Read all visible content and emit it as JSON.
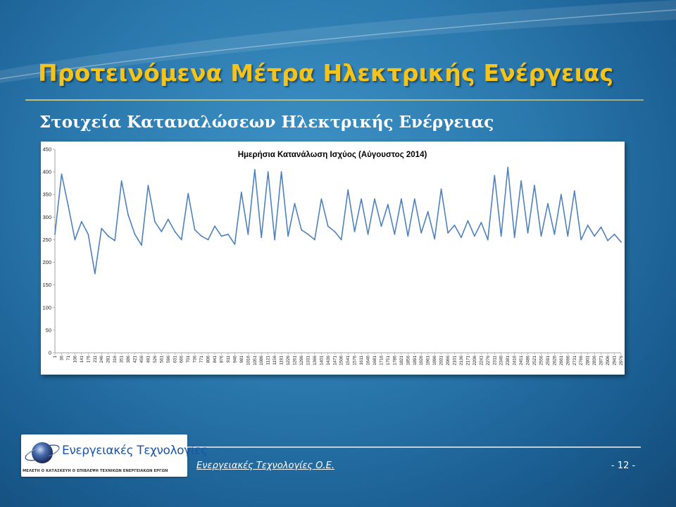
{
  "slide": {
    "title": "Προτεινόμενα Μέτρα Ηλεκτρικής Ενέργειας",
    "subtitle": "Στοιχεία Καταναλώσεων Ηλεκτρικής Ενέργειας",
    "background_color": "#2a78ad",
    "title_color": "#f6c31a"
  },
  "footer": {
    "company": "Ενεργειακές Τεχνολογίες Ο.Ε.",
    "page_number": "- 12 -"
  },
  "logo": {
    "name": "Ενεργειακές Τεχνολογίες",
    "tagline": "ΜΕΛΕΤΗ Ο ΚΑΤΑΣΚΕΥΗ Ο ΕΠΙΒΛΕΨΗ ΤΕΧΝΙΚΩΝ ΕΝΕΡΓΕΙΑΚΩΝ ΕΡΓΩΝ",
    "icon": "globe-icon",
    "name_color": "#1a56a6"
  },
  "chart_data": {
    "type": "line",
    "title": "Ημερήσια Κατανάλωση Ισχύος (Αύγουστος 2014)",
    "xlabel": "",
    "ylabel": "",
    "ylim": [
      0,
      450
    ],
    "yticks": [
      "0",
      "50",
      "100",
      "150",
      "200",
      "250",
      "300",
      "350",
      "400",
      "450"
    ],
    "xticks": [
      "1",
      "36",
      "71",
      "106",
      "141",
      "176",
      "211",
      "246",
      "281",
      "316",
      "351",
      "386",
      "421",
      "456",
      "491",
      "526",
      "561",
      "596",
      "631",
      "666",
      "701",
      "736",
      "771",
      "806",
      "841",
      "876",
      "911",
      "946",
      "981",
      "1016",
      "1051",
      "1086",
      "1121",
      "1156",
      "1191",
      "1226",
      "1261",
      "1296",
      "1331",
      "1366",
      "1401",
      "1436",
      "1471",
      "1506",
      "1541",
      "1576",
      "1611",
      "1646",
      "1681",
      "1716",
      "1751",
      "1786",
      "1821",
      "1856",
      "1891",
      "1926",
      "1961",
      "1996",
      "2031",
      "2066",
      "2101",
      "2136",
      "2171",
      "2206",
      "2241",
      "2276",
      "2311",
      "2346",
      "2381",
      "2416",
      "2451",
      "2486",
      "2521",
      "2556",
      "2591",
      "2626",
      "2661",
      "2696",
      "2731",
      "2766",
      "2801",
      "2836",
      "2871",
      "2906",
      "2941",
      "2976"
    ],
    "x_start": 1,
    "x_end": 2976,
    "grid": false,
    "legend": "none",
    "line_color": "#4f81bd",
    "series": [
      {
        "name": "",
        "x": [
          1,
          36,
          71,
          106,
          141,
          176,
          211,
          246,
          281,
          316,
          351,
          386,
          421,
          456,
          491,
          526,
          561,
          596,
          631,
          666,
          701,
          736,
          771,
          806,
          841,
          876,
          911,
          946,
          981,
          1016,
          1051,
          1086,
          1121,
          1156,
          1191,
          1226,
          1261,
          1296,
          1331,
          1366,
          1401,
          1436,
          1471,
          1506,
          1541,
          1576,
          1611,
          1646,
          1681,
          1716,
          1751,
          1786,
          1821,
          1856,
          1891,
          1926,
          1961,
          1996,
          2031,
          2066,
          2101,
          2136,
          2171,
          2206,
          2241,
          2276,
          2311,
          2346,
          2381,
          2416,
          2451,
          2486,
          2521,
          2556,
          2591,
          2626,
          2661,
          2696,
          2731,
          2766,
          2801,
          2836,
          2871,
          2906,
          2941,
          2976
        ],
        "y": [
          262,
          395,
          325,
          250,
          290,
          262,
          175,
          275,
          258,
          248,
          380,
          305,
          262,
          238,
          370,
          290,
          268,
          295,
          268,
          250,
          352,
          272,
          258,
          250,
          280,
          258,
          262,
          240,
          355,
          262,
          405,
          255,
          400,
          250,
          400,
          258,
          330,
          272,
          262,
          250,
          340,
          280,
          268,
          250,
          360,
          268,
          340,
          262,
          340,
          280,
          328,
          262,
          340,
          258,
          340,
          265,
          312,
          252,
          362,
          265,
          282,
          255,
          292,
          258,
          288,
          250,
          392,
          258,
          410,
          255,
          380,
          265,
          370,
          258,
          330,
          262,
          350,
          258,
          358,
          250,
          282,
          258,
          278,
          248,
          262,
          245
        ]
      }
    ]
  }
}
